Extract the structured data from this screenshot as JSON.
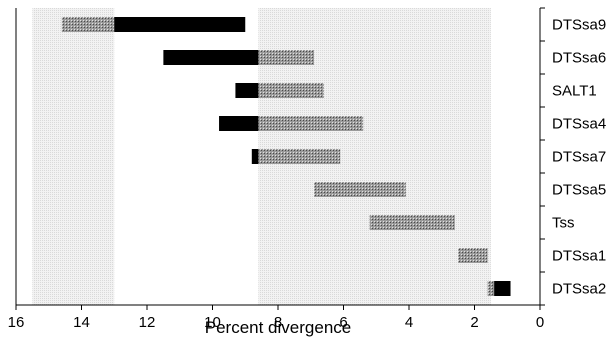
{
  "chart_data": {
    "type": "bar",
    "orientation": "horizontal",
    "title": "",
    "xlabel": "Percent divergence",
    "ylabel": "",
    "x_reversed": true,
    "xlim": [
      0,
      16
    ],
    "x_ticks": [
      16,
      14,
      12,
      10,
      8,
      6,
      4,
      2,
      0
    ],
    "grid": false,
    "legend": "none",
    "shaded_bands": [
      {
        "from": 15.5,
        "to": 13.0,
        "style": "light-dotted-grey"
      },
      {
        "from": 8.6,
        "to": 1.5,
        "style": "light-dotted-grey"
      }
    ],
    "categories": [
      "DTSsa9",
      "DTSsa6",
      "SALT1",
      "DTSsa4",
      "DTSsa7",
      "DTSsa5",
      "Tss",
      "DTSsa1",
      "DTSsa2"
    ],
    "series": [
      {
        "style": "hatched-grey",
        "color": "#8a8a8a",
        "ranges": [
          [
            14.6,
            13.0
          ],
          [
            8.6,
            6.9
          ],
          [
            8.6,
            6.6
          ],
          [
            8.6,
            5.4
          ],
          [
            8.6,
            6.1
          ],
          [
            6.9,
            4.1
          ],
          [
            5.2,
            2.6
          ],
          [
            2.5,
            1.6
          ],
          [
            1.6,
            1.4
          ]
        ]
      },
      {
        "style": "solid-black",
        "color": "#000000",
        "ranges": [
          [
            13.0,
            9.0
          ],
          [
            11.5,
            8.6
          ],
          [
            9.3,
            8.6
          ],
          [
            9.8,
            8.6
          ],
          [
            8.8,
            8.6
          ],
          null,
          null,
          null,
          [
            1.4,
            0.9
          ]
        ]
      }
    ]
  }
}
